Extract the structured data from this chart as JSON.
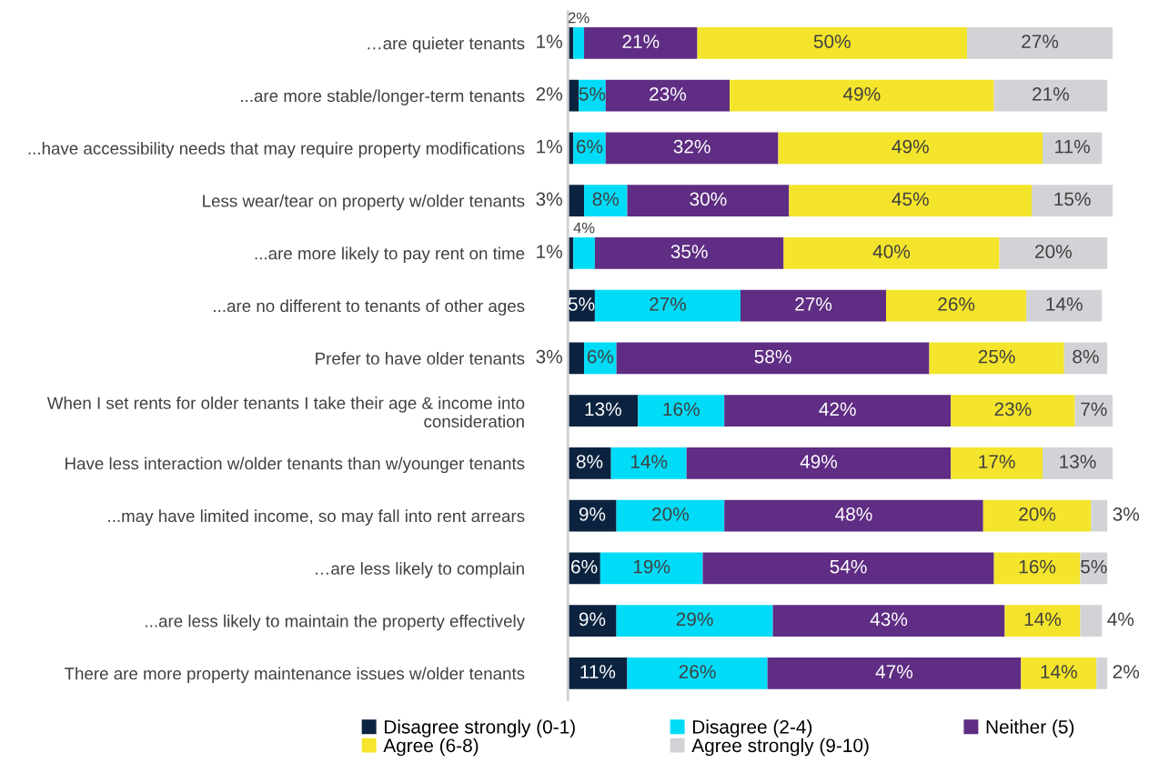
{
  "chart_data": {
    "type": "bar",
    "orientation": "horizontal",
    "stacked": true,
    "legend": "bottom",
    "grid": false,
    "categories": [
      "…are quieter tenants",
      "...are more stable/longer-term tenants",
      "...have accessibility needs that may require property modifications",
      "Less wear/tear on property w/older tenants",
      "...are more likely to pay rent on time",
      "...are no different to tenants of other ages",
      "Prefer to have older tenants",
      "When I set rents for older tenants I take their age & income into consideration",
      "Have less interaction w/older tenants than w/younger tenants",
      "...may have limited income, so may fall into rent arrears",
      "…are less likely to complain",
      "...are less likely to maintain the property effectively",
      "There are more property maintenance issues w/older tenants"
    ],
    "series": [
      {
        "name": "Disagree strongly (0-1)",
        "color": "#0c2340",
        "values": [
          1,
          2,
          1,
          3,
          1,
          5,
          3,
          13,
          8,
          9,
          6,
          9,
          11
        ],
        "value_labels": [
          "1%",
          "2%",
          "1%",
          "3%",
          "1%",
          "5%",
          "3%",
          "13%",
          "8%",
          "9%",
          "6%",
          "9%",
          "11%"
        ]
      },
      {
        "name": "Disagree (2-4)",
        "color": "#00dcf7",
        "values": [
          2,
          5,
          6,
          8,
          4,
          27,
          6,
          16,
          14,
          20,
          19,
          29,
          26
        ],
        "value_labels": [
          "2%",
          "5%",
          "6%",
          "8%",
          "4%",
          "27%",
          "6%",
          "16%",
          "14%",
          "20%",
          "19%",
          "29%",
          "26%"
        ]
      },
      {
        "name": "Neither (5)",
        "color": "#5f2d83",
        "values": [
          21,
          23,
          32,
          30,
          35,
          27,
          58,
          42,
          49,
          48,
          54,
          43,
          47
        ],
        "value_labels": [
          "21%",
          "23%",
          "32%",
          "30%",
          "35%",
          "27%",
          "58%",
          "42%",
          "49%",
          "48%",
          "54%",
          "43%",
          "47%"
        ]
      },
      {
        "name": "Agree (6-8)",
        "color": "#f4e42b",
        "values": [
          50,
          49,
          49,
          45,
          40,
          26,
          25,
          23,
          17,
          20,
          16,
          14,
          14
        ],
        "value_labels": [
          "50%",
          "49%",
          "49%",
          "45%",
          "40%",
          "26%",
          "25%",
          "23%",
          "17%",
          "20%",
          "16%",
          "14%",
          "14%"
        ]
      },
      {
        "name": "Agree strongly (9-10)",
        "color": "#d1d3d6",
        "values": [
          27,
          21,
          11,
          15,
          20,
          14,
          8,
          7,
          13,
          3,
          5,
          4,
          2
        ],
        "value_labels": [
          "27%",
          "21%",
          "11%",
          "15%",
          "20%",
          "14%",
          "8%",
          "7%",
          "13%",
          "3%",
          "5%",
          "4%",
          "2%"
        ]
      }
    ]
  }
}
